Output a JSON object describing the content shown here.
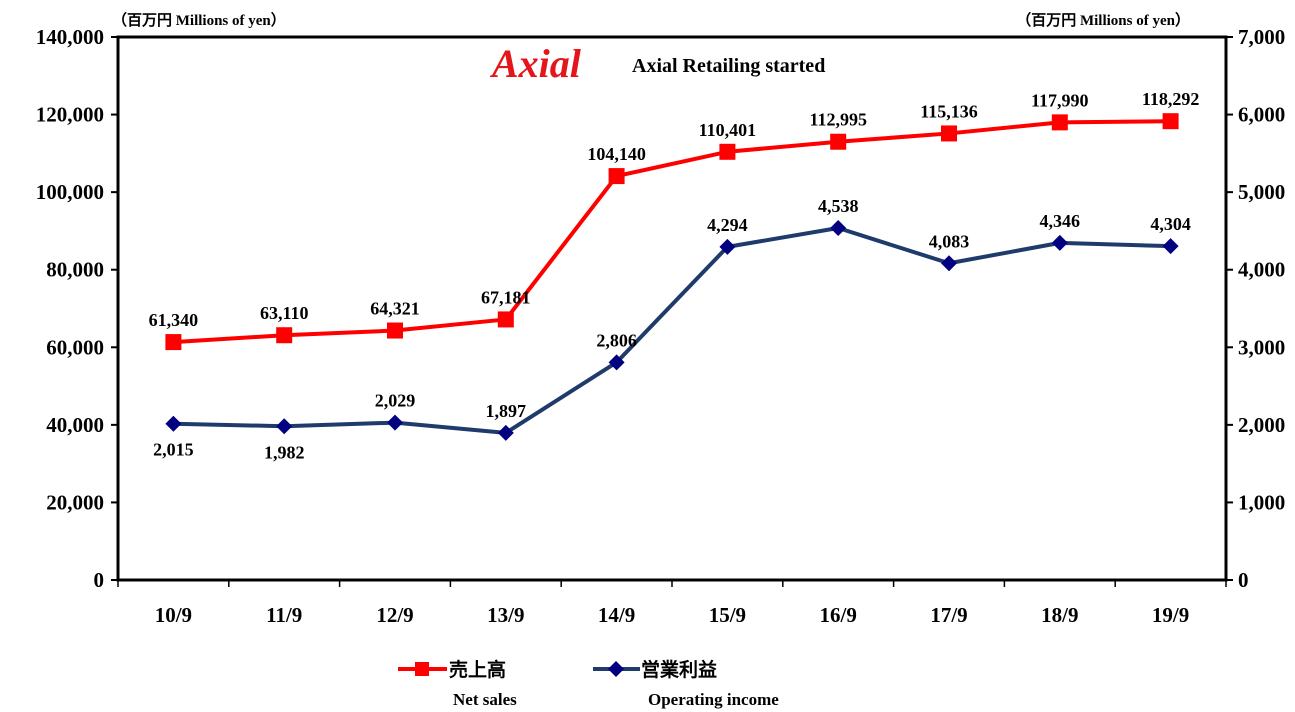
{
  "chart_data": {
    "type": "line",
    "categories": [
      "10/9",
      "11/9",
      "12/9",
      "13/9",
      "14/9",
      "15/9",
      "16/9",
      "17/9",
      "18/9",
      "19/9"
    ],
    "series": [
      {
        "name": "売上高",
        "name_en": "Net sales",
        "axis": "left",
        "values": [
          61340,
          63110,
          64321,
          67181,
          104140,
          110401,
          112995,
          115136,
          117990,
          118292
        ],
        "labels": [
          "61,340",
          "63,110",
          "64,321",
          "67,181",
          "104,140",
          "110,401",
          "112,995",
          "115,136",
          "117,990",
          "118,292"
        ],
        "color": "#ff0000",
        "marker": "square"
      },
      {
        "name": "営業利益",
        "name_en": "Operating income",
        "axis": "right",
        "values": [
          2015,
          1982,
          2029,
          1897,
          2806,
          4294,
          4538,
          4083,
          4346,
          4304
        ],
        "labels": [
          "2,015",
          "1,982",
          "2,029",
          "1,897",
          "2,806",
          "4,294",
          "4,538",
          "4,083",
          "4,346",
          "4,304"
        ],
        "color": "#1f3b6b",
        "marker_color": "#000080",
        "marker": "diamond"
      }
    ],
    "y_left": {
      "unit_label": "（百万円  Millions of yen）",
      "ylim": [
        0,
        140000
      ],
      "ticks": [
        "0",
        "20,000",
        "40,000",
        "60,000",
        "80,000",
        "100,000",
        "120,000",
        "140,000"
      ]
    },
    "y_right": {
      "unit_label": "（百万円 Millions of yen）",
      "ylim": [
        0,
        7000
      ],
      "ticks": [
        "0",
        "1,000",
        "2,000",
        "3,000",
        "4,000",
        "5,000",
        "6,000",
        "7,000"
      ]
    },
    "annotation": {
      "logo_text": "Axial",
      "text": "Axial Retailing started",
      "brand_color": "#e4161c"
    },
    "grid": false,
    "legend_position": "bottom-center"
  }
}
